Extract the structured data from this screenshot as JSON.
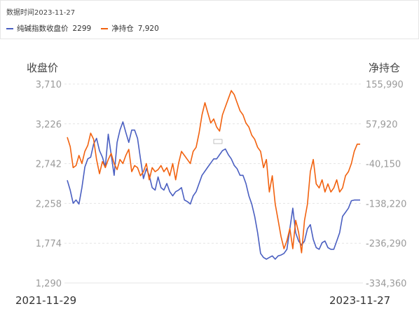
{
  "header": {
    "data_time": "数据时间2023-11-27"
  },
  "legend": [
    {
      "name": "纯碱指数收盘价",
      "value": "2299",
      "color": "#4a5fc1"
    },
    {
      "name": "净持仓",
      "value": "7,920",
      "color": "#f2620f"
    }
  ],
  "chart_data": {
    "type": "line",
    "left_axis_title": "收盘价",
    "right_axis_title": "净持仓",
    "left_ticks": [
      "3,710",
      "3,226",
      "2,742",
      "2,258",
      "1,774",
      "1,290"
    ],
    "right_ticks": [
      "155,990",
      "57,920",
      "-40,150",
      "-138,220",
      "-236,290",
      "-334,360"
    ],
    "left_range": [
      1290,
      3710
    ],
    "right_range": [
      -334360,
      155990
    ],
    "x_start_label": "2021-11-29",
    "x_end_label": "2023-11-27",
    "grid": true,
    "series": [
      {
        "name": "纯碱指数收盘价",
        "axis": "left",
        "color": "#4a5fc1",
        "x": [
          0,
          0.01,
          0.02,
          0.03,
          0.04,
          0.05,
          0.06,
          0.07,
          0.08,
          0.09,
          0.1,
          0.11,
          0.12,
          0.13,
          0.14,
          0.15,
          0.16,
          0.17,
          0.18,
          0.19,
          0.2,
          0.21,
          0.22,
          0.23,
          0.24,
          0.25,
          0.26,
          0.27,
          0.28,
          0.29,
          0.3,
          0.31,
          0.32,
          0.33,
          0.34,
          0.35,
          0.36,
          0.37,
          0.38,
          0.39,
          0.4,
          0.41,
          0.42,
          0.43,
          0.44,
          0.45,
          0.46,
          0.47,
          0.48,
          0.49,
          0.5,
          0.51,
          0.52,
          0.53,
          0.54,
          0.55,
          0.56,
          0.57,
          0.58,
          0.59,
          0.6,
          0.61,
          0.62,
          0.63,
          0.64,
          0.65,
          0.66,
          0.67,
          0.68,
          0.69,
          0.7,
          0.71,
          0.72,
          0.73,
          0.74,
          0.75,
          0.76,
          0.77,
          0.78,
          0.79,
          0.8,
          0.81,
          0.82,
          0.83,
          0.84,
          0.85,
          0.86,
          0.87,
          0.88,
          0.89,
          0.9,
          0.91,
          0.92,
          0.93,
          0.94,
          0.95,
          0.96,
          0.97,
          0.98,
          0.99,
          1.0
        ],
        "y": [
          2540,
          2420,
          2260,
          2300,
          2250,
          2450,
          2700,
          2800,
          2820,
          2980,
          3050,
          2900,
          2820,
          2700,
          3100,
          2850,
          2600,
          3000,
          3150,
          3250,
          3120,
          3000,
          3150,
          3150,
          3050,
          2800,
          2560,
          2680,
          2600,
          2450,
          2420,
          2580,
          2450,
          2420,
          2500,
          2400,
          2350,
          2400,
          2420,
          2450,
          2300,
          2280,
          2250,
          2350,
          2400,
          2500,
          2600,
          2650,
          2700,
          2750,
          2800,
          2800,
          2850,
          2900,
          2920,
          2850,
          2800,
          2720,
          2680,
          2600,
          2600,
          2500,
          2350,
          2250,
          2100,
          1900,
          1650,
          1600,
          1580,
          1600,
          1620,
          1580,
          1620,
          1630,
          1650,
          1700,
          1950,
          2200,
          1900,
          1800,
          1750,
          1800,
          1950,
          2000,
          1820,
          1720,
          1700,
          1780,
          1800,
          1720,
          1700,
          1700,
          1800,
          1900,
          2100,
          2150,
          2200,
          2290,
          2299,
          2299,
          2299
        ]
      },
      {
        "name": "净持仓",
        "axis": "right",
        "color": "#f2620f",
        "x": [
          0,
          0.01,
          0.02,
          0.03,
          0.04,
          0.05,
          0.06,
          0.07,
          0.08,
          0.09,
          0.1,
          0.11,
          0.12,
          0.13,
          0.14,
          0.15,
          0.16,
          0.17,
          0.18,
          0.19,
          0.2,
          0.21,
          0.22,
          0.23,
          0.24,
          0.25,
          0.26,
          0.27,
          0.28,
          0.29,
          0.3,
          0.31,
          0.32,
          0.33,
          0.34,
          0.35,
          0.36,
          0.37,
          0.38,
          0.39,
          0.4,
          0.41,
          0.42,
          0.43,
          0.44,
          0.45,
          0.46,
          0.47,
          0.48,
          0.49,
          0.5,
          0.51,
          0.52,
          0.53,
          0.54,
          0.55,
          0.56,
          0.57,
          0.58,
          0.59,
          0.6,
          0.61,
          0.62,
          0.63,
          0.64,
          0.65,
          0.66,
          0.67,
          0.68,
          0.69,
          0.7,
          0.71,
          0.72,
          0.73,
          0.74,
          0.75,
          0.76,
          0.77,
          0.78,
          0.79,
          0.8,
          0.81,
          0.82,
          0.83,
          0.84,
          0.85,
          0.86,
          0.87,
          0.88,
          0.89,
          0.9,
          0.91,
          0.92,
          0.93,
          0.94,
          0.95,
          0.96,
          0.97,
          0.98,
          0.99,
          1.0
        ],
        "y": [
          25000,
          2000,
          -50000,
          -45000,
          -20000,
          -40000,
          -10000,
          5000,
          35000,
          20000,
          -30000,
          -65000,
          -35000,
          -50000,
          -30000,
          -15000,
          -40000,
          -55000,
          -30000,
          -40000,
          -20000,
          -5000,
          -60000,
          -45000,
          -50000,
          -70000,
          -60000,
          -40000,
          -80000,
          -50000,
          -60000,
          -55000,
          -45000,
          -60000,
          -50000,
          -70000,
          -40000,
          -80000,
          -40000,
          -10000,
          -20000,
          -30000,
          -40000,
          -10000,
          0,
          35000,
          80000,
          110000,
          85000,
          60000,
          70000,
          50000,
          40000,
          80000,
          100000,
          120000,
          140000,
          130000,
          110000,
          90000,
          80000,
          60000,
          50000,
          30000,
          20000,
          0,
          -10000,
          -50000,
          -30000,
          -110000,
          -70000,
          -140000,
          -180000,
          -220000,
          -250000,
          -230000,
          -200000,
          -250000,
          -180000,
          -210000,
          -260000,
          -180000,
          -140000,
          -60000,
          -30000,
          -90000,
          -100000,
          -80000,
          -110000,
          -90000,
          -110000,
          -100000,
          -80000,
          -110000,
          -100000,
          -70000,
          -60000,
          -40000,
          -10000,
          7920,
          7920
        ]
      }
    ]
  }
}
